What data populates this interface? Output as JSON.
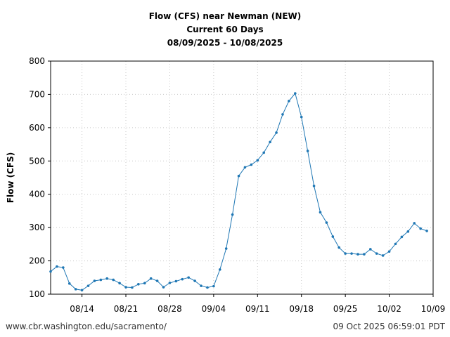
{
  "chart_data": {
    "type": "line",
    "title": "Flow (CFS) near Newman (NEW)",
    "subtitle": "Current 60 Days",
    "date_range": "08/09/2025 - 10/08/2025",
    "xlabel": "",
    "ylabel": "Flow (CFS)",
    "ylim": [
      100,
      800
    ],
    "yticks": [
      100,
      200,
      300,
      400,
      500,
      600,
      700,
      800
    ],
    "xlim_days": [
      0,
      61
    ],
    "xticks": [
      {
        "day": 5,
        "label": "08/14"
      },
      {
        "day": 12,
        "label": "08/21"
      },
      {
        "day": 19,
        "label": "08/28"
      },
      {
        "day": 26,
        "label": "09/04"
      },
      {
        "day": 33,
        "label": "09/11"
      },
      {
        "day": 40,
        "label": "09/18"
      },
      {
        "day": 47,
        "label": "09/25"
      },
      {
        "day": 54,
        "label": "10/02"
      },
      {
        "day": 61,
        "label": "10/09"
      }
    ],
    "grid": true,
    "line_color": "#1f77b4",
    "series": [
      {
        "name": "Flow (CFS)",
        "x": [
          0,
          1,
          2,
          3,
          4,
          5,
          6,
          7,
          8,
          9,
          10,
          11,
          12,
          13,
          14,
          15,
          16,
          17,
          18,
          19,
          20,
          21,
          22,
          23,
          24,
          25,
          26,
          27,
          28,
          29,
          30,
          31,
          32,
          33,
          34,
          35,
          36,
          37,
          38,
          39,
          40,
          41,
          42,
          43,
          44,
          45,
          46,
          47,
          48,
          49,
          50,
          51,
          52,
          53,
          54,
          55,
          56,
          57,
          58,
          59,
          60
        ],
        "values": [
          168,
          183,
          180,
          132,
          115,
          112,
          125,
          140,
          143,
          147,
          143,
          133,
          121,
          120,
          130,
          133,
          147,
          140,
          121,
          134,
          139,
          145,
          150,
          140,
          125,
          120,
          124,
          174,
          237,
          339,
          455,
          481,
          489,
          502,
          525,
          557,
          585,
          640,
          680,
          703,
          632,
          530,
          425,
          346,
          315,
          273,
          240,
          222,
          222,
          220,
          220,
          235,
          222,
          216,
          228,
          251,
          272,
          288,
          313,
          297,
          290
        ]
      }
    ]
  },
  "footer": {
    "source": "www.cbr.washington.edu/sacramento/",
    "timestamp": "09 Oct 2025 06:59:01 PDT"
  }
}
